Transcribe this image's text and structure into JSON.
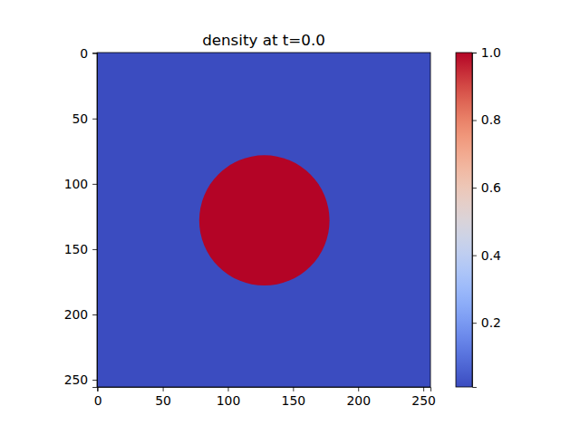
{
  "chart_data": {
    "type": "heatmap",
    "title": "density at t=0.0",
    "xlim": [
      -0.5,
      255.5
    ],
    "xticks": [
      0,
      50,
      100,
      150,
      200,
      250
    ],
    "ylim": [
      255.5,
      -0.5
    ],
    "yticks": [
      0,
      50,
      100,
      150,
      200,
      250
    ],
    "background": 0.01,
    "disk": {
      "x": 128,
      "y": 128,
      "radius": 50,
      "value": 1
    },
    "colorbar_range": [
      0.01,
      1
    ],
    "colorbar_ticks": [
      0.2,
      0.4,
      0.6,
      0.8,
      {
        "value": 1,
        "label": "1.0"
      }
    ]
  }
}
